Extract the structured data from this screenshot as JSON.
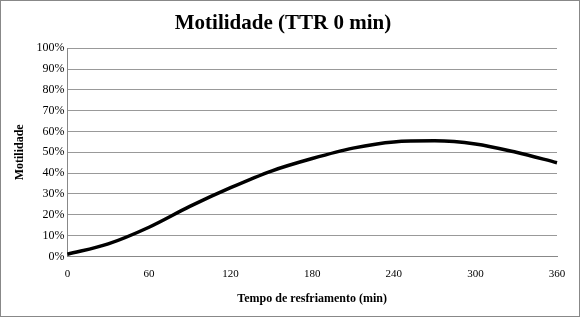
{
  "chart_data": {
    "type": "line",
    "title": "Motilidade (TTR 0 min)",
    "x_label": "Tempo de resfriamento (min)",
    "y_label": "Motilidade",
    "x": [
      0,
      30,
      60,
      90,
      120,
      150,
      180,
      210,
      240,
      270,
      300,
      330,
      360
    ],
    "values": [
      1,
      6,
      14,
      24,
      33,
      41,
      47,
      52,
      55,
      55.5,
      54,
      50,
      45
    ],
    "color": "#000000",
    "marker": "none",
    "xlim": [
      0,
      360
    ],
    "xticks": [
      0,
      60,
      120,
      180,
      240,
      300,
      360
    ],
    "ylim": [
      0,
      100
    ],
    "yticks": [
      {
        "value": 0,
        "label": "0%"
      },
      {
        "value": 10,
        "label": "10%"
      },
      {
        "value": 20,
        "label": "20%"
      },
      {
        "value": 30,
        "label": "30%"
      },
      {
        "value": 40,
        "label": "40%"
      },
      {
        "value": 50,
        "label": "50%"
      },
      {
        "value": 60,
        "label": "60%"
      },
      {
        "value": 70,
        "label": "70%"
      },
      {
        "value": 80,
        "label": "80%"
      },
      {
        "value": 90,
        "label": "90%"
      },
      {
        "value": 100,
        "label": "100%"
      }
    ],
    "grid": true
  }
}
